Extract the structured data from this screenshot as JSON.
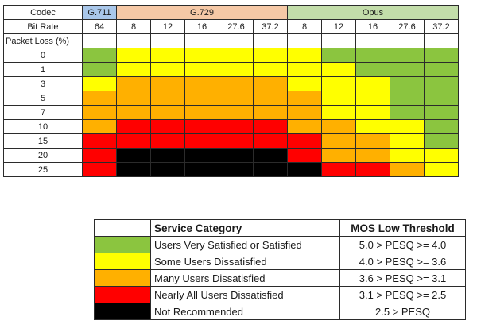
{
  "matrix": {
    "codec_label": "Codec",
    "bitrate_label": "Bit Rate",
    "packet_loss_label": "Packet Loss (%)",
    "codecs": {
      "g711": "G.711",
      "g729": "G.729",
      "opus": "Opus"
    },
    "bitrates": [
      "64",
      "8",
      "12",
      "16",
      "27.6",
      "37.2",
      "8",
      "12",
      "16",
      "27.6",
      "37.2"
    ],
    "colors": {
      "green": "#8bc53f",
      "yellow": "#ffff00",
      "orange": "#ffb000",
      "red": "#ff0000",
      "black": "#000000",
      "g711_header": "#a9c7ea",
      "g729_header": "#f5c8a6",
      "opus_header": "#c3ddaa"
    },
    "rows": [
      {
        "loss": "0",
        "cells": [
          "green",
          "yellow",
          "yellow",
          "yellow",
          "yellow",
          "yellow",
          "yellow",
          "green",
          "green",
          "green",
          "green"
        ]
      },
      {
        "loss": "1",
        "cells": [
          "green",
          "yellow",
          "yellow",
          "yellow",
          "yellow",
          "yellow",
          "yellow",
          "yellow",
          "green",
          "green",
          "green"
        ]
      },
      {
        "loss": "3",
        "cells": [
          "yellow",
          "orange",
          "orange",
          "orange",
          "orange",
          "orange",
          "yellow",
          "yellow",
          "yellow",
          "green",
          "green"
        ]
      },
      {
        "loss": "5",
        "cells": [
          "orange",
          "orange",
          "orange",
          "orange",
          "orange",
          "orange",
          "orange",
          "yellow",
          "yellow",
          "green",
          "green"
        ]
      },
      {
        "loss": "7",
        "cells": [
          "orange",
          "orange",
          "orange",
          "orange",
          "orange",
          "orange",
          "orange",
          "yellow",
          "yellow",
          "green",
          "green"
        ]
      },
      {
        "loss": "10",
        "cells": [
          "orange",
          "red",
          "red",
          "red",
          "red",
          "red",
          "orange",
          "orange",
          "yellow",
          "yellow",
          "green"
        ]
      },
      {
        "loss": "15",
        "cells": [
          "red",
          "red",
          "red",
          "red",
          "red",
          "red",
          "red",
          "orange",
          "orange",
          "yellow",
          "green"
        ]
      },
      {
        "loss": "20",
        "cells": [
          "red",
          "black",
          "black",
          "black",
          "black",
          "black",
          "red",
          "orange",
          "orange",
          "yellow",
          "yellow"
        ]
      },
      {
        "loss": "25",
        "cells": [
          "red",
          "black",
          "black",
          "black",
          "black",
          "black",
          "black",
          "red",
          "red",
          "orange",
          "yellow"
        ]
      }
    ]
  },
  "legend": {
    "header_category": "Service Category",
    "header_threshold": "MOS Low Threshold",
    "rows": [
      {
        "color": "green",
        "category": "Users Very Satisfied or Satisfied",
        "threshold": "5.0 > PESQ >= 4.0"
      },
      {
        "color": "yellow",
        "category": "Some Users Dissatisfied",
        "threshold": "4.0 > PESQ >= 3.6"
      },
      {
        "color": "orange",
        "category": "Many Users Dissatisfied",
        "threshold": "3.6 > PESQ >= 3.1"
      },
      {
        "color": "red",
        "category": "Nearly All Users Dissatisfied",
        "threshold": "3.1 > PESQ >= 2.5"
      },
      {
        "color": "black",
        "category": "Not Recommended",
        "threshold": "2.5 > PESQ"
      }
    ]
  }
}
